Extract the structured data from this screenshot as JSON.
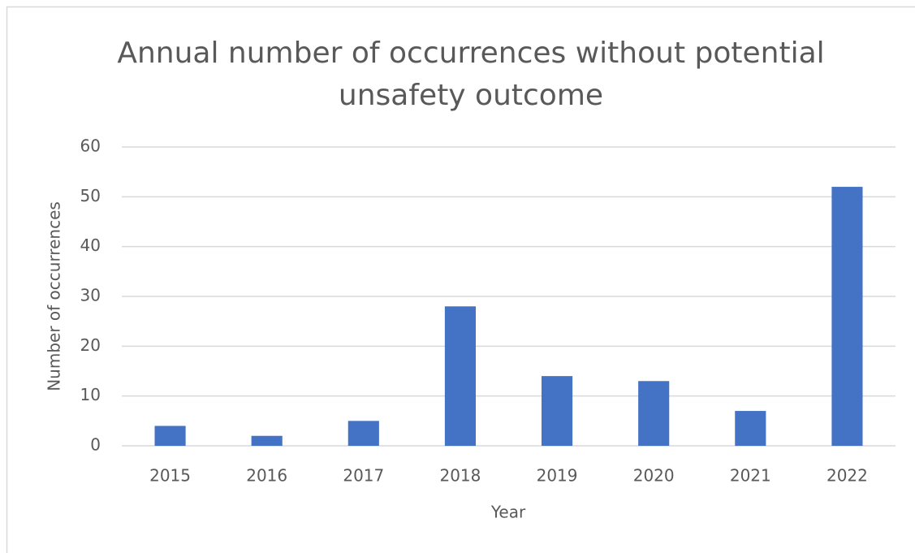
{
  "chart_data": {
    "type": "bar",
    "title": "Annual number of occurrences without potential unsafety outcome",
    "x_label": "Year",
    "y_label": "Number of occurrences",
    "categories": [
      "2015",
      "2016",
      "2017",
      "2018",
      "2019",
      "2020",
      "2021",
      "2022"
    ],
    "values": [
      4,
      2,
      5,
      28,
      14,
      13,
      7,
      52
    ],
    "color": "#4472c4",
    "ylim": [
      0,
      60
    ],
    "yticks": [
      0,
      10,
      20,
      30,
      40,
      50,
      60
    ],
    "grid": true
  }
}
